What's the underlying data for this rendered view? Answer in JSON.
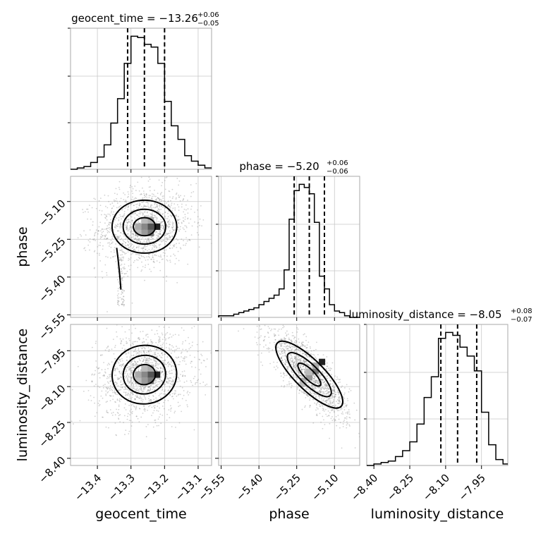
{
  "chart_data": {
    "type": "corner",
    "parameters": [
      "geocent_time",
      "phase",
      "luminosity_distance"
    ],
    "titles": [
      {
        "parameter": "geocent_time",
        "main": "geocent_time = −13.26",
        "sup": "+0.06",
        "sub": "−0.05",
        "median": -13.26,
        "plus": 0.06,
        "minus": 0.05
      },
      {
        "parameter": "phase",
        "main": "phase = −5.20",
        "sup": "+0.06",
        "sub": "−0.06",
        "median": -5.2,
        "plus": 0.06,
        "minus": 0.06
      },
      {
        "parameter": "luminosity_distance",
        "main": "luminosity_distance = −8.05",
        "sup": "+0.08",
        "sub": "−0.07",
        "median": -8.05,
        "plus": 0.08,
        "minus": 0.07
      }
    ],
    "ranges": {
      "geocent_time": [
        -13.48,
        -13.06
      ],
      "phase": [
        -5.56,
        -5.0
      ],
      "luminosity_distance": [
        -8.43,
        -7.84
      ]
    },
    "ticks": {
      "geocent_time": {
        "values": [
          -13.4,
          -13.3,
          -13.2,
          -13.1
        ],
        "labels": [
          "−13.4",
          "−13.3",
          "−13.2",
          "−13.1"
        ]
      },
      "phase": {
        "values": [
          -5.55,
          -5.4,
          -5.25,
          -5.1
        ],
        "labels": [
          "−5.55",
          "−5.40",
          "−5.25",
          "−5.10"
        ]
      },
      "luminosity_distance": {
        "values": [
          -8.4,
          -8.25,
          -8.1,
          -7.95
        ],
        "labels": [
          "−8.40",
          "−8.25",
          "−8.10",
          "−7.95"
        ]
      }
    },
    "axis_labels": {
      "geocent_time": "geocent_time",
      "phase": "phase",
      "luminosity_distance": "luminosity_distance"
    },
    "histograms": {
      "geocent_time": {
        "bins": [
          -13.48,
          -13.46,
          -13.44,
          -13.42,
          -13.4,
          -13.38,
          -13.36,
          -13.34,
          -13.32,
          -13.3,
          -13.28,
          -13.26,
          -13.24,
          -13.22,
          -13.2,
          -13.18,
          -13.16,
          -13.14,
          -13.12,
          -13.1,
          -13.08,
          -13.06
        ],
        "counts": [
          0,
          1,
          2,
          5,
          9,
          18,
          34,
          52,
          78,
          98,
          97,
          92,
          90,
          78,
          50,
          32,
          22,
          10,
          6,
          3,
          1
        ]
      },
      "phase": {
        "bins": [
          -5.56,
          -5.54,
          -5.52,
          -5.5,
          -5.48,
          -5.46,
          -5.44,
          -5.42,
          -5.4,
          -5.38,
          -5.36,
          -5.34,
          -5.32,
          -5.3,
          -5.28,
          -5.26,
          -5.24,
          -5.22,
          -5.2,
          -5.18,
          -5.16,
          -5.14,
          -5.12,
          -5.1,
          -5.08,
          -5.06,
          -5.04,
          -5.02,
          -5.0
        ],
        "counts": [
          1,
          1,
          1,
          2,
          3,
          4,
          5,
          6,
          8,
          10,
          12,
          14,
          18,
          30,
          62,
          80,
          84,
          82,
          78,
          60,
          26,
          18,
          8,
          4,
          3,
          1,
          0,
          0
        ]
      },
      "luminosity_distance": {
        "bins": [
          -8.43,
          -8.4,
          -8.37,
          -8.34,
          -8.31,
          -8.28,
          -8.25,
          -8.22,
          -8.19,
          -8.16,
          -8.13,
          -8.1,
          -8.07,
          -8.04,
          -8.01,
          -7.98,
          -7.95,
          -7.92,
          -7.89,
          -7.86,
          -7.84
        ],
        "counts": [
          0,
          1,
          2,
          3,
          6,
          10,
          16,
          28,
          46,
          60,
          86,
          90,
          88,
          80,
          74,
          64,
          36,
          14,
          4,
          1
        ]
      }
    },
    "quantiles": {
      "geocent_time": [
        -13.31,
        -13.26,
        -13.2
      ],
      "phase": [
        -5.26,
        -5.2,
        -5.14
      ],
      "luminosity_distance": [
        -8.12,
        -8.05,
        -7.97
      ]
    },
    "pairs": [
      {
        "x": "geocent_time",
        "y": "phase",
        "mean": [
          -13.26,
          -5.2
        ],
        "sd": [
          0.055,
          0.06
        ],
        "corr": 0.1,
        "tail": true
      },
      {
        "x": "geocent_time",
        "y": "luminosity_distance",
        "mean": [
          -13.26,
          -8.05
        ],
        "sd": [
          0.055,
          0.07
        ],
        "corr": 0.15,
        "tail": false
      },
      {
        "x": "phase",
        "y": "luminosity_distance",
        "mean": [
          -5.2,
          -8.05
        ],
        "sd": [
          0.06,
          0.07
        ],
        "corr": -0.8,
        "tail": false
      }
    ],
    "grid": true
  }
}
